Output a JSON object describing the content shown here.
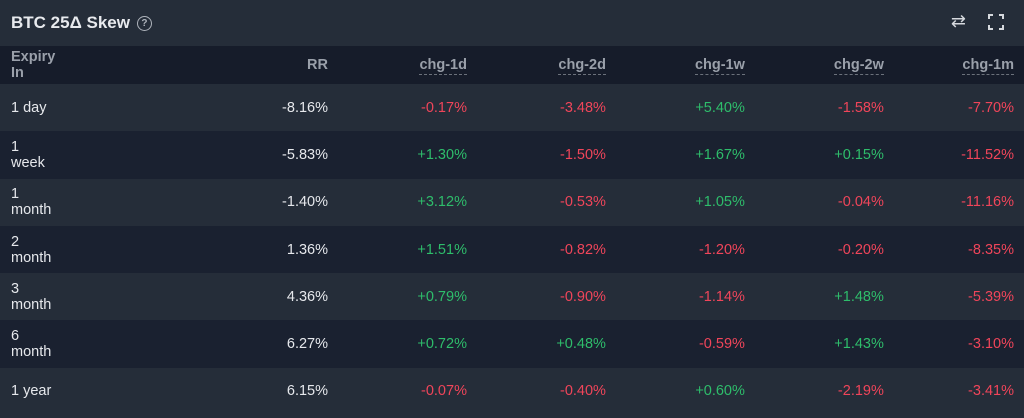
{
  "title": "BTC 25Δ Skew",
  "help_icon": "?",
  "tools": {
    "swap_icon": "⇄",
    "fullscreen_icon": "fullscreen"
  },
  "colors": {
    "positive": "#2ebd6b",
    "negative": "#f0455a"
  },
  "columns": [
    "Expiry In",
    "RR",
    "chg-1d",
    "chg-2d",
    "chg-1w",
    "chg-2w",
    "chg-1m"
  ],
  "rows": [
    [
      "1 day",
      "-8.16%",
      "-0.17%",
      "-3.48%",
      "+5.40%",
      "-1.58%",
      "-7.70%"
    ],
    [
      "1 week",
      "-5.83%",
      "+1.30%",
      "-1.50%",
      "+1.67%",
      "+0.15%",
      "-11.52%"
    ],
    [
      "1 month",
      "-1.40%",
      "+3.12%",
      "-0.53%",
      "+1.05%",
      "-0.04%",
      "-11.16%"
    ],
    [
      "2 month",
      "1.36%",
      "+1.51%",
      "-0.82%",
      "-1.20%",
      "-0.20%",
      "-8.35%"
    ],
    [
      "3 month",
      "4.36%",
      "+0.79%",
      "-0.90%",
      "-1.14%",
      "+1.48%",
      "-5.39%"
    ],
    [
      "6 month",
      "6.27%",
      "+0.72%",
      "+0.48%",
      "-0.59%",
      "+1.43%",
      "-3.10%"
    ],
    [
      "1 year",
      "6.15%",
      "-0.07%",
      "-0.40%",
      "+0.60%",
      "-2.19%",
      "-3.41%"
    ]
  ]
}
